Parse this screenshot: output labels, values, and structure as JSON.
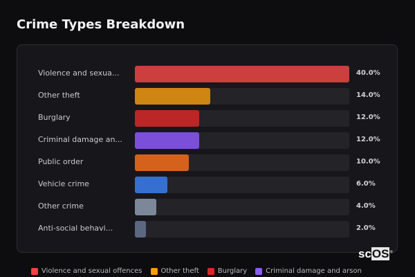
{
  "title": "Crime Types Breakdown",
  "logo": {
    "text_plain": "sc",
    "text_boxed": "OS",
    "mark": "®"
  },
  "chart_data": {
    "type": "bar",
    "orientation": "horizontal",
    "title": "Crime Types Breakdown",
    "categories": [
      "Violence and sexua...",
      "Other theft",
      "Burglary",
      "Criminal damage an...",
      "Public order",
      "Vehicle crime",
      "Other crime",
      "Anti-social behavi..."
    ],
    "values": [
      40.0,
      14.0,
      12.0,
      12.0,
      10.0,
      6.0,
      4.0,
      2.0
    ],
    "value_labels": [
      "40.0%",
      "14.0%",
      "12.0%",
      "12.0%",
      "10.0%",
      "6.0%",
      "4.0%",
      "2.0%"
    ],
    "colors": [
      "#cc3f3f",
      "#cf8512",
      "#bb2626",
      "#7c4fd8",
      "#d4621c",
      "#3570d0",
      "#7c8799",
      "#5c6880"
    ],
    "xlim": [
      0,
      40
    ],
    "legend": {
      "placement": "bottom",
      "entries": [
        {
          "label": "Violence and sexual offences",
          "color": "#ef4444"
        },
        {
          "label": "Other theft",
          "color": "#f59e0b"
        },
        {
          "label": "Burglary",
          "color": "#dc2626"
        },
        {
          "label": "Criminal damage and arson",
          "color": "#8b5cf6"
        }
      ]
    }
  }
}
